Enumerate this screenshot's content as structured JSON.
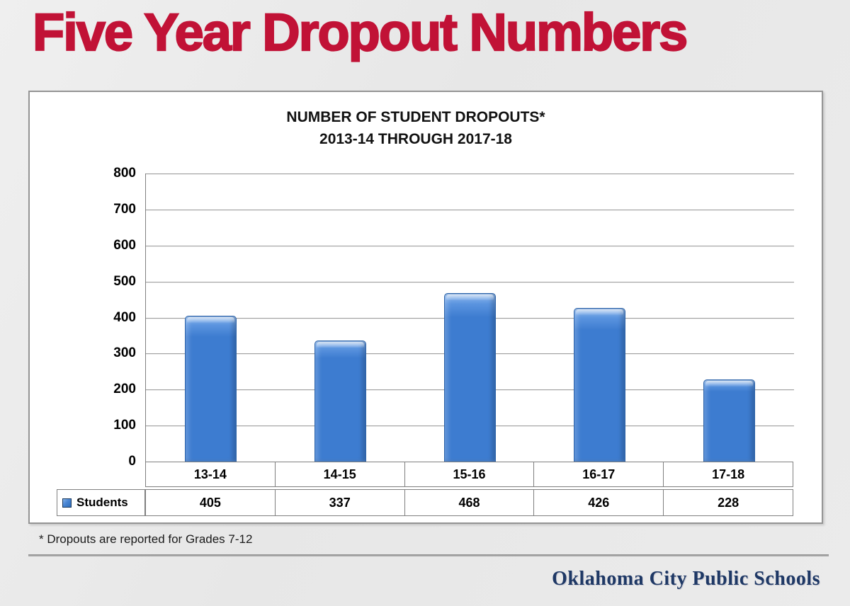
{
  "slide": {
    "title": "Five Year Dropout Numbers",
    "title_color": "#c11236",
    "footnote": "* Dropouts are reported for Grades 7-12",
    "logo_text": "Oklahoma City Public Schools",
    "logo_color": "#1e3865"
  },
  "chart_data": {
    "type": "bar",
    "title": "NUMBER OF STUDENT DROPOUTS*",
    "subtitle": "2013-14 THROUGH 2017-18",
    "categories": [
      "13-14",
      "14-15",
      "15-16",
      "16-17",
      "17-18"
    ],
    "series": [
      {
        "name": "Students",
        "values": [
          405,
          337,
          468,
          426,
          228
        ]
      }
    ],
    "ylim": [
      0,
      800
    ],
    "ytick_step": 100,
    "grid": true,
    "legend_position": "data-table-left",
    "data_table": true,
    "bar_color": "#3d7cd0",
    "bar_highlight_color": "#93bcef",
    "bar_border_color": "#2d63a8",
    "xlabel": "",
    "ylabel": ""
  }
}
